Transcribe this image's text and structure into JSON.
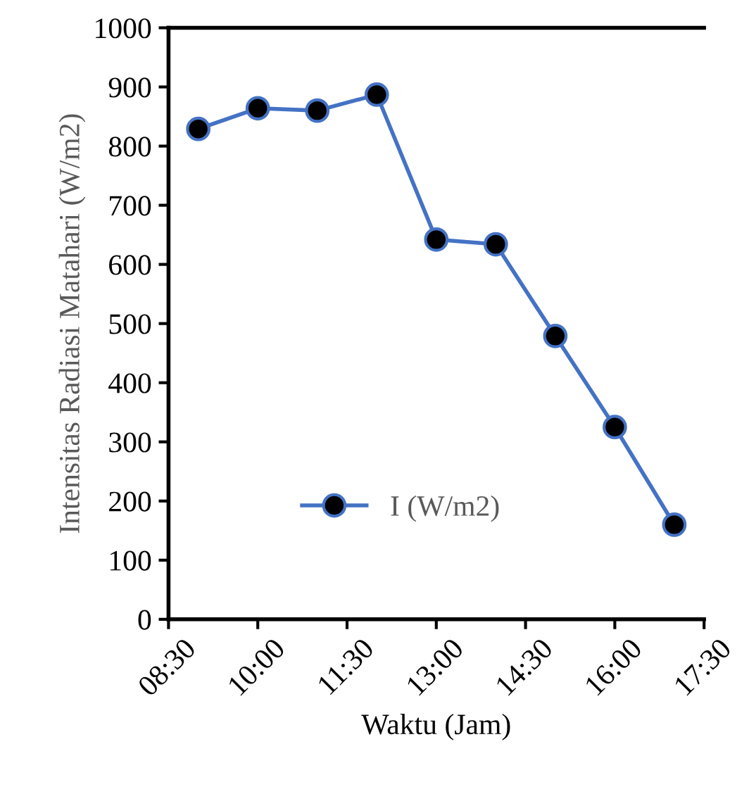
{
  "chart_data": {
    "type": "line",
    "xlabel": "Waktu (Jam)",
    "ylabel": "Intensitas Radiasi Matahari (W/m2)",
    "x": [
      9,
      10,
      11,
      12,
      13,
      14,
      15,
      16,
      17
    ],
    "series": [
      {
        "name": "I (W/m2)",
        "color": "#4472c4",
        "values": [
          829,
          864,
          860,
          887,
          642,
          634,
          479,
          325,
          160
        ]
      }
    ],
    "xlim": [
      8.5,
      17.5
    ],
    "xticks": [
      {
        "value": 8.5,
        "label": "08:30"
      },
      {
        "value": 10,
        "label": "10:00"
      },
      {
        "value": 11.5,
        "label": "11:30"
      },
      {
        "value": 13,
        "label": "13:00"
      },
      {
        "value": 14.5,
        "label": "14:30"
      },
      {
        "value": 16,
        "label": "16:00"
      },
      {
        "value": 17.5,
        "label": "17:30"
      }
    ],
    "ylim": [
      0,
      1000
    ],
    "yticks": [
      0,
      100,
      200,
      300,
      400,
      500,
      600,
      700,
      800,
      900,
      1000
    ],
    "marker": "circle",
    "line_style": "solid",
    "grid": false,
    "legend": "bottom left"
  }
}
